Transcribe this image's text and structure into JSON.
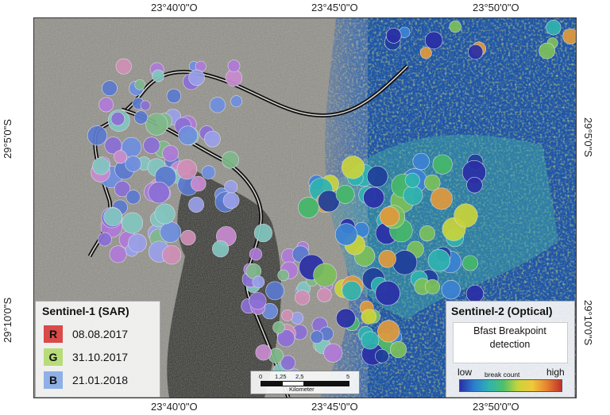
{
  "map": {
    "coords": {
      "top": [
        "23°40'0\"O",
        "23°45'0\"O",
        "23°50'0\"O"
      ],
      "bottom": [
        "23°40'0\"O",
        "23°45'0\"O",
        "23°50'0\"O"
      ],
      "left": [
        "29°5'0\"S",
        "29°10'0\"S"
      ],
      "right": [
        "29°5'0\"S",
        "29°10'0\"S"
      ]
    },
    "colors": {
      "sar_background": "#8a8a82",
      "optical_background": "#1d4fa3",
      "river": "#111111"
    }
  },
  "legend_sar": {
    "title": "Sentinel-1 (SAR)",
    "bands": [
      {
        "letter": "R",
        "date": "08.08.2017",
        "color": "#d94a48"
      },
      {
        "letter": "G",
        "date": "31.10.2017",
        "color": "#b8dc7a"
      },
      {
        "letter": "B",
        "date": "21.01.2018",
        "color": "#8fb0e6"
      }
    ]
  },
  "legend_optical": {
    "title": "Sentinel-2 (Optical)",
    "detection": "Bfast Breakpoint detection",
    "ramp_low": "low",
    "ramp_high": "high",
    "ramp_caption": "break count"
  },
  "scalebar": {
    "labels": [
      "0",
      "1,25",
      "2,5",
      "5"
    ],
    "unit": "Kilometer"
  }
}
